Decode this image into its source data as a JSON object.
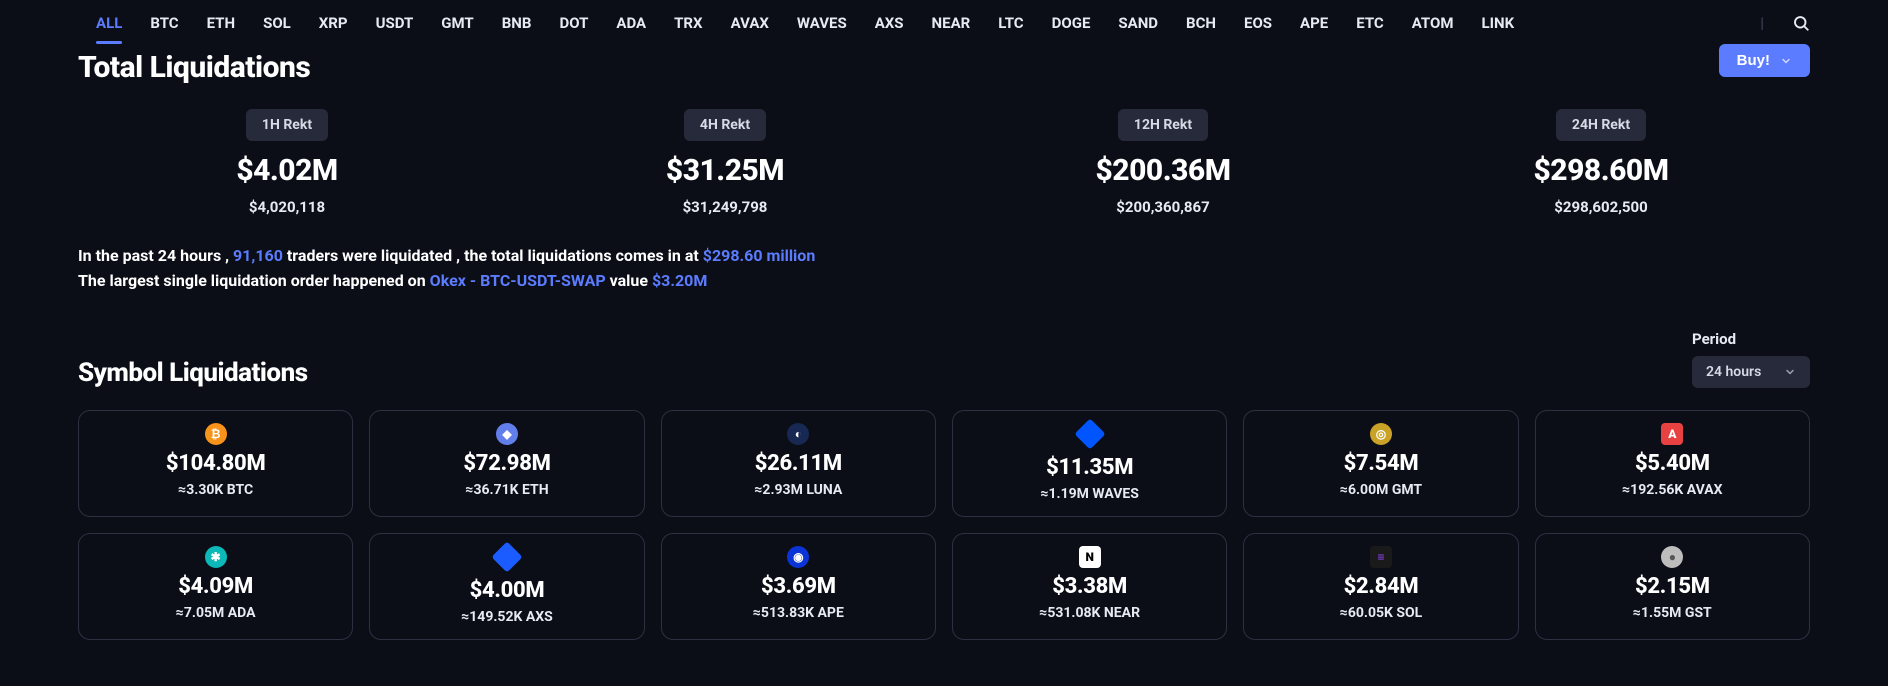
{
  "colors": {
    "bg": "#0b0e17",
    "accent": "#5b7cff",
    "badge_bg": "#262a3a",
    "card_border": "#2c3142",
    "text": "#ffffff",
    "muted": "#d7dbe6"
  },
  "tabs": {
    "items": [
      "ALL",
      "BTC",
      "ETH",
      "SOL",
      "XRP",
      "USDT",
      "GMT",
      "BNB",
      "DOT",
      "ADA",
      "TRX",
      "AVAX",
      "WAVES",
      "AXS",
      "NEAR",
      "LTC",
      "DOGE",
      "SAND",
      "BCH",
      "EOS",
      "APE",
      "ETC",
      "ATOM",
      "LINK"
    ],
    "active_index": 0
  },
  "title": "Total Liquidations",
  "buy_label": "Buy!",
  "rekt": [
    {
      "label": "1H Rekt",
      "amount": "$4.02M",
      "detail": "$4,020,118"
    },
    {
      "label": "4H Rekt",
      "amount": "$31.25M",
      "detail": "$31,249,798"
    },
    {
      "label": "12H Rekt",
      "amount": "$200.36M",
      "detail": "$200,360,867"
    },
    {
      "label": "24H Rekt",
      "amount": "$298.60M",
      "detail": "$298,602,500"
    }
  ],
  "summary": {
    "line1_pre": "In the past 24 hours , ",
    "traders": "91,160",
    "line1_mid": " traders were liquidated , the total liquidations comes in at ",
    "total": "$298.60 million",
    "line2_pre": "The largest single liquidation order happened on ",
    "exchange_pair": "Okex - BTC-USDT-SWAP",
    "line2_mid": " value ",
    "top_value": "$3.20M"
  },
  "subtitle": "Symbol Liquidations",
  "period": {
    "label": "Period",
    "selected": "24 hours"
  },
  "cards": [
    {
      "amount": "$104.80M",
      "sub": "≈3.30K BTC",
      "icon": {
        "shape": "circle",
        "bg": "#f7931a",
        "glyph": "₿"
      }
    },
    {
      "amount": "$72.98M",
      "sub": "≈36.71K ETH",
      "icon": {
        "shape": "circle",
        "bg": "#627eea",
        "glyph": "◆"
      }
    },
    {
      "amount": "$26.11M",
      "sub": "≈2.93M LUNA",
      "icon": {
        "shape": "circle",
        "bg": "#172852",
        "glyph": "◐"
      }
    },
    {
      "amount": "$11.35M",
      "sub": "≈1.19M WAVES",
      "icon": {
        "shape": "diamond",
        "bg": "#0055ff",
        "glyph": ""
      }
    },
    {
      "amount": "$7.54M",
      "sub": "≈6.00M GMT",
      "icon": {
        "shape": "circle",
        "bg": "#c9a227",
        "glyph": "◎"
      }
    },
    {
      "amount": "$5.40M",
      "sub": "≈192.56K AVAX",
      "icon": {
        "shape": "square",
        "bg": "#e84142",
        "glyph": "A"
      }
    },
    {
      "amount": "$4.09M",
      "sub": "≈7.05M ADA",
      "icon": {
        "shape": "circle",
        "bg": "#0cb8b8",
        "glyph": "✱"
      }
    },
    {
      "amount": "$4.00M",
      "sub": "≈149.52K AXS",
      "icon": {
        "shape": "diamond",
        "bg": "#1a5cff",
        "glyph": ""
      }
    },
    {
      "amount": "$3.69M",
      "sub": "≈513.83K APE",
      "icon": {
        "shape": "circle",
        "bg": "#0b34d6",
        "glyph": "◉"
      }
    },
    {
      "amount": "$3.38M",
      "sub": "≈531.08K NEAR",
      "icon": {
        "shape": "square",
        "bg": "#ffffff",
        "glyph": "N",
        "fg": "#000000"
      }
    },
    {
      "amount": "$2.84M",
      "sub": "≈60.05K SOL",
      "icon": {
        "shape": "square",
        "bg": "#1a1a1a",
        "glyph": "≡",
        "fg": "#9945ff"
      }
    },
    {
      "amount": "$2.15M",
      "sub": "≈1.55M GST",
      "icon": {
        "shape": "circle",
        "bg": "#bdbdbd",
        "glyph": "●",
        "fg": "#555"
      }
    }
  ]
}
